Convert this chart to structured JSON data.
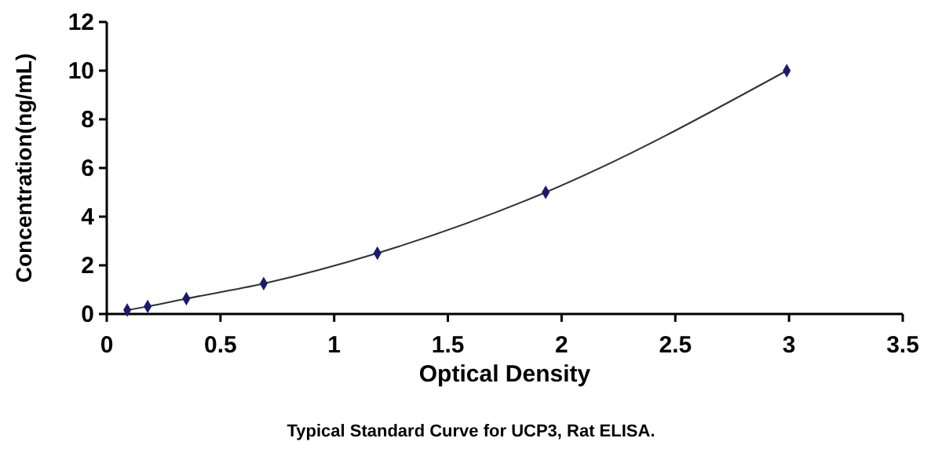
{
  "chart_data": {
    "type": "scatter",
    "xlabel": "Optical Density",
    "ylabel": "Concentration(ng/mL)",
    "annotations": [
      "Typical Standard Curve for UCP3, Rat ELISA."
    ],
    "xlim": [
      0,
      3.5
    ],
    "xticks": [
      0,
      0.5,
      1,
      1.5,
      2,
      2.5,
      3,
      3.5
    ],
    "ylim": [
      0,
      12
    ],
    "yticks": [
      0,
      2,
      4,
      6,
      8,
      10,
      12
    ],
    "grid": false,
    "series": [
      {
        "type": "line",
        "color": "#333333",
        "marker": "none",
        "x": [
          0.09,
          0.18,
          0.35,
          0.69,
          1.19,
          1.93,
          2.99
        ],
        "values": [
          0.16,
          0.31,
          0.63,
          1.25,
          2.5,
          5,
          10
        ]
      },
      {
        "color": "#1a1a6e",
        "marker": "diamond",
        "x": [
          0.09,
          0.18,
          0.35,
          0.69,
          1.19,
          1.93,
          2.99
        ],
        "values": [
          0.16,
          0.31,
          0.63,
          1.25,
          2.5,
          5,
          10
        ]
      }
    ]
  }
}
